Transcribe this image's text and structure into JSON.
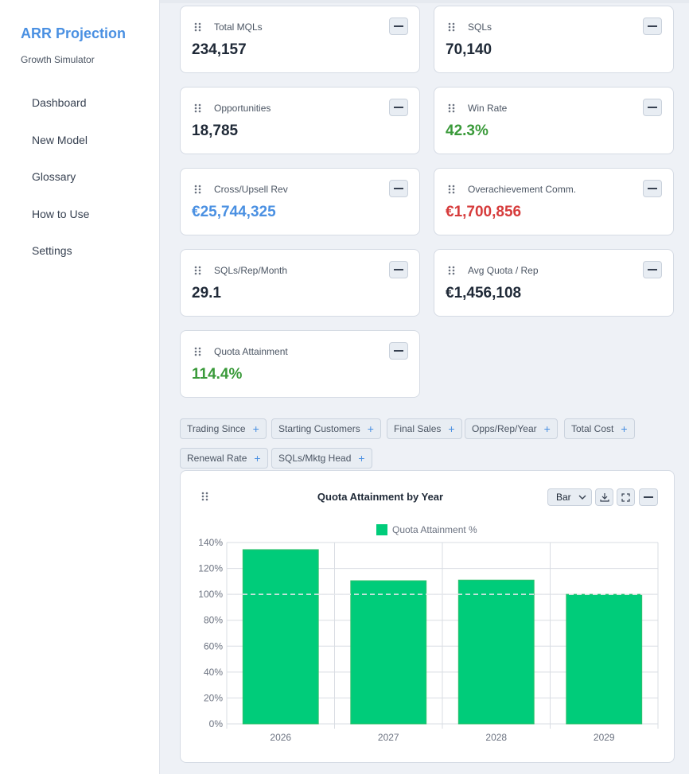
{
  "sidebar": {
    "title": "ARR Projection",
    "subtitle": "Growth Simulator",
    "items": [
      {
        "label": "Dashboard"
      },
      {
        "label": "New Model"
      },
      {
        "label": "Glossary"
      },
      {
        "label": "How to Use"
      },
      {
        "label": "Settings"
      }
    ]
  },
  "metrics": [
    {
      "label": "Total MQLs",
      "value": "234,157"
    },
    {
      "label": "SQLs",
      "value": "70,140"
    },
    {
      "label": "Opportunities",
      "value": "18,785"
    },
    {
      "label": "Win Rate",
      "value": "42.3%",
      "color": "#3a9a3a"
    },
    {
      "label": "Cross/Upsell Rev",
      "value": "€25,744,325",
      "color": "#4a90e2"
    },
    {
      "label": "Overachievement Comm.",
      "value": "€1,700,856",
      "color": "#d63b3b"
    },
    {
      "label": "SQLs/Rep/Month",
      "value": "29.1"
    },
    {
      "label": "Avg Quota / Rep",
      "value": "€1,456,108"
    },
    {
      "label": "Quota Attainment",
      "value": "114.4%",
      "color": "#3a9a3a"
    }
  ],
  "chips": [
    {
      "label": "Trading Since"
    },
    {
      "label": "Starting Customers"
    },
    {
      "label": "Final Sales"
    },
    {
      "label": "Opps/Rep/Year"
    },
    {
      "label": "Total Cost"
    },
    {
      "label": "Renewal Rate"
    },
    {
      "label": "SQLs/Mktg Head"
    }
  ],
  "chart_panel": {
    "type_select_value": "Bar"
  },
  "chart_data": {
    "type": "bar",
    "title": "Quota Attainment by Year",
    "categories": [
      "2026",
      "2027",
      "2028",
      "2029"
    ],
    "series": [
      {
        "name": "Quota Attainment %",
        "values": [
          134.5,
          110.5,
          111.0,
          100.0
        ],
        "color": "#00cc7a"
      }
    ],
    "ylim": [
      0,
      140
    ],
    "yticks": [
      "0%",
      "20%",
      "40%",
      "60%",
      "80%",
      "100%",
      "120%",
      "140%"
    ],
    "reference_line": 100,
    "legend": "top",
    "grid": true
  }
}
